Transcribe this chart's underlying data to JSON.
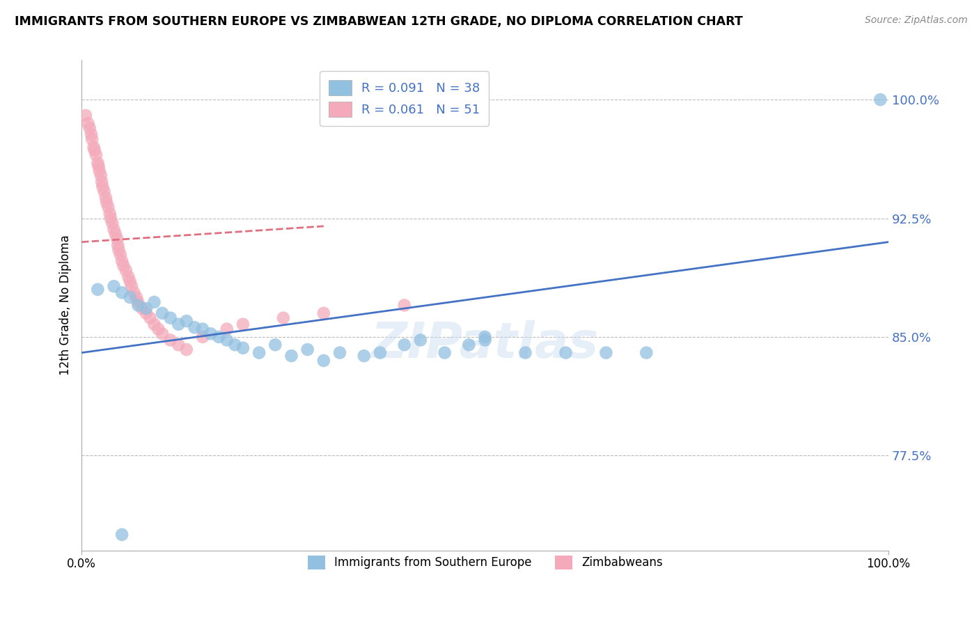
{
  "title": "IMMIGRANTS FROM SOUTHERN EUROPE VS ZIMBABWEAN 12TH GRADE, NO DIPLOMA CORRELATION CHART",
  "source": "Source: ZipAtlas.com",
  "ylabel": "12th Grade, No Diploma",
  "xlim": [
    0.0,
    1.0
  ],
  "ylim": [
    0.715,
    1.025
  ],
  "gridline_y": [
    0.775,
    0.85,
    0.925,
    1.0
  ],
  "ytick_labels": [
    "77.5%",
    "85.0%",
    "92.5%",
    "100.0%"
  ],
  "xtick_labels": [
    "0.0%",
    "100.0%"
  ],
  "legend_r_blue": "R = 0.091",
  "legend_n_blue": "N = 38",
  "legend_r_pink": "R = 0.061",
  "legend_n_pink": "N = 51",
  "blue_scatter_x": [
    0.02,
    0.04,
    0.05,
    0.06,
    0.07,
    0.08,
    0.09,
    0.1,
    0.11,
    0.12,
    0.13,
    0.14,
    0.15,
    0.16,
    0.17,
    0.18,
    0.19,
    0.2,
    0.22,
    0.24,
    0.26,
    0.28,
    0.3,
    0.32,
    0.35,
    0.37,
    0.4,
    0.42,
    0.45,
    0.48,
    0.5,
    0.55,
    0.6,
    0.65,
    0.7,
    0.5,
    0.99,
    0.05
  ],
  "blue_scatter_y": [
    0.88,
    0.882,
    0.878,
    0.875,
    0.87,
    0.868,
    0.872,
    0.865,
    0.862,
    0.858,
    0.86,
    0.856,
    0.855,
    0.852,
    0.85,
    0.848,
    0.845,
    0.843,
    0.84,
    0.845,
    0.838,
    0.842,
    0.835,
    0.84,
    0.838,
    0.84,
    0.845,
    0.848,
    0.84,
    0.845,
    0.85,
    0.84,
    0.84,
    0.84,
    0.84,
    0.848,
    1.0,
    0.725
  ],
  "pink_scatter_x": [
    0.005,
    0.008,
    0.01,
    0.012,
    0.013,
    0.015,
    0.016,
    0.018,
    0.02,
    0.021,
    0.022,
    0.024,
    0.025,
    0.026,
    0.028,
    0.03,
    0.031,
    0.033,
    0.035,
    0.036,
    0.038,
    0.04,
    0.042,
    0.044,
    0.045,
    0.046,
    0.048,
    0.05,
    0.052,
    0.055,
    0.058,
    0.06,
    0.062,
    0.065,
    0.068,
    0.07,
    0.075,
    0.08,
    0.085,
    0.09,
    0.095,
    0.1,
    0.11,
    0.12,
    0.13,
    0.15,
    0.18,
    0.2,
    0.25,
    0.3,
    0.4
  ],
  "pink_scatter_y": [
    0.99,
    0.985,
    0.982,
    0.978,
    0.975,
    0.97,
    0.968,
    0.965,
    0.96,
    0.958,
    0.955,
    0.952,
    0.948,
    0.945,
    0.942,
    0.938,
    0.935,
    0.932,
    0.928,
    0.925,
    0.922,
    0.918,
    0.915,
    0.912,
    0.908,
    0.905,
    0.902,
    0.898,
    0.895,
    0.892,
    0.888,
    0.885,
    0.882,
    0.878,
    0.875,
    0.872,
    0.868,
    0.865,
    0.862,
    0.858,
    0.855,
    0.852,
    0.848,
    0.845,
    0.842,
    0.85,
    0.855,
    0.858,
    0.862,
    0.865,
    0.87
  ],
  "blue_line_x": [
    0.0,
    1.0
  ],
  "blue_line_y": [
    0.84,
    0.91
  ],
  "pink_line_x": [
    0.0,
    0.3
  ],
  "pink_line_y": [
    0.91,
    0.92
  ],
  "blue_color": "#92C0E0",
  "pink_color": "#F4AABB",
  "blue_line_color": "#4472C4",
  "pink_line_color": "#E07080",
  "watermark": "ZIPatlas",
  "background_color": "#ffffff",
  "grid_color": "#bbbbbb"
}
